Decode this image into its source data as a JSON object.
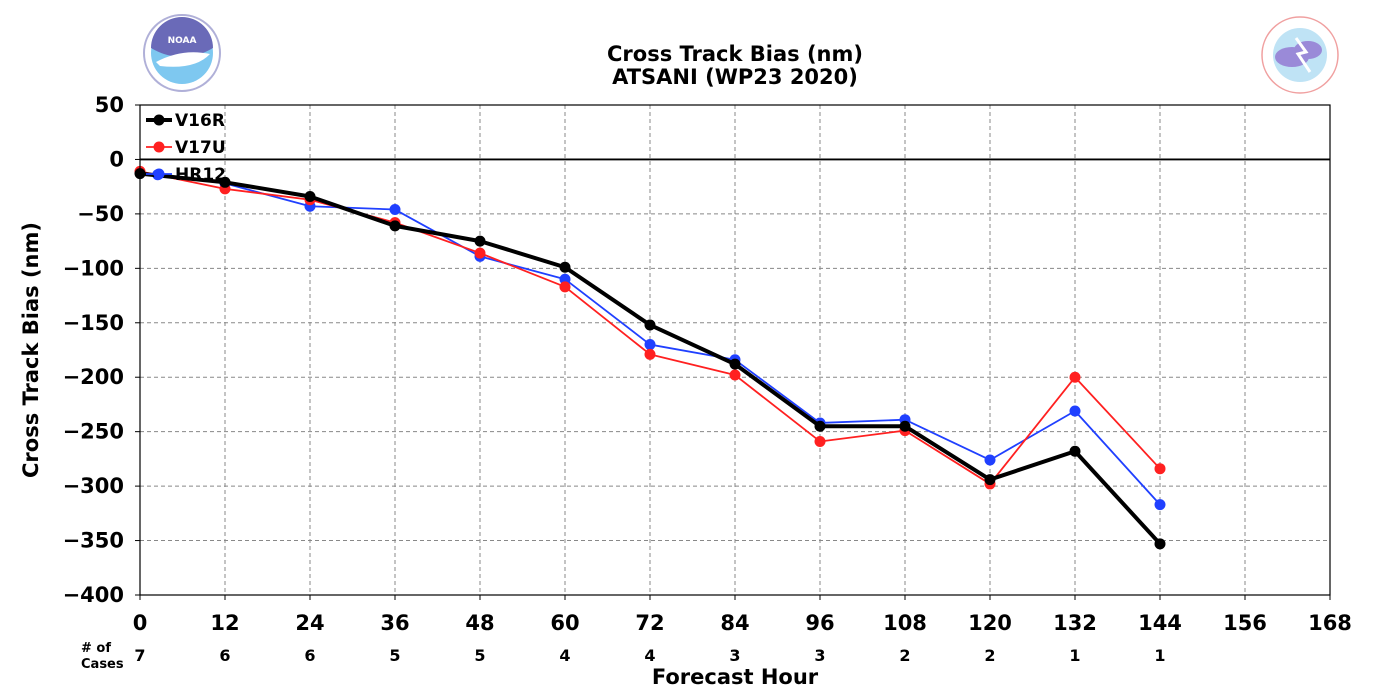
{
  "logos": {
    "left": {
      "icon": "noaa-logo-icon",
      "text": "NOAA"
    },
    "right": {
      "icon": "nws-logo-icon",
      "text": "NATIONAL WEATHER SERVICE"
    }
  },
  "chart_data": {
    "type": "line",
    "title": "Cross Track Bias (nm)",
    "subtitle": "ATSANI (WP23 2020)",
    "xlabel": "Forecast Hour",
    "ylabel": "Cross Track Bias (nm)",
    "xlim": [
      0,
      168
    ],
    "ylim": [
      -400,
      50
    ],
    "xticks": [
      0,
      12,
      24,
      36,
      48,
      60,
      72,
      84,
      96,
      108,
      120,
      132,
      144,
      156,
      168
    ],
    "yticks": [
      50,
      0,
      -50,
      -100,
      -150,
      -200,
      -250,
      -300,
      -350,
      -400
    ],
    "ytick_labels": [
      "50",
      "0",
      "−50",
      "−100",
      "−150",
      "−200",
      "−250",
      "−300",
      "−350",
      "−400"
    ],
    "grid": true,
    "legend_position": "top-left",
    "zero_line": true,
    "series": [
      {
        "name": "V16R",
        "color": "#000000",
        "x": [
          0,
          12,
          24,
          36,
          48,
          60,
          72,
          84,
          96,
          108,
          120,
          132,
          144
        ],
        "values": [
          -13,
          -21,
          -34,
          -61,
          -75,
          -99,
          -152,
          -188,
          -245,
          -245,
          -294,
          -268,
          -353
        ]
      },
      {
        "name": "V17U",
        "color": "#ff2020",
        "x": [
          0,
          12,
          24,
          36,
          48,
          60,
          72,
          84,
          96,
          108,
          120,
          132,
          144
        ],
        "values": [
          -11,
          -27,
          -37,
          -58,
          -86,
          -117,
          -179,
          -198,
          -259,
          -249,
          -298,
          -200,
          -284
        ]
      },
      {
        "name": "HR12",
        "color": "#2040ff",
        "x": [
          2.5,
          12,
          24,
          36,
          48,
          60,
          72,
          84,
          96,
          108,
          120,
          132,
          144
        ],
        "values": [
          -14,
          -22,
          -43,
          -46,
          -89,
          -110,
          -170,
          -184,
          -242,
          -239,
          -276,
          -231,
          -317
        ]
      }
    ],
    "cases": {
      "label_line1": "# of",
      "label_line2": "Cases",
      "x": [
        0,
        12,
        24,
        36,
        48,
        60,
        72,
        84,
        96,
        108,
        120,
        132,
        144
      ],
      "values": [
        "7",
        "6",
        "6",
        "5",
        "5",
        "4",
        "4",
        "3",
        "3",
        "2",
        "2",
        "1",
        "1"
      ]
    }
  }
}
